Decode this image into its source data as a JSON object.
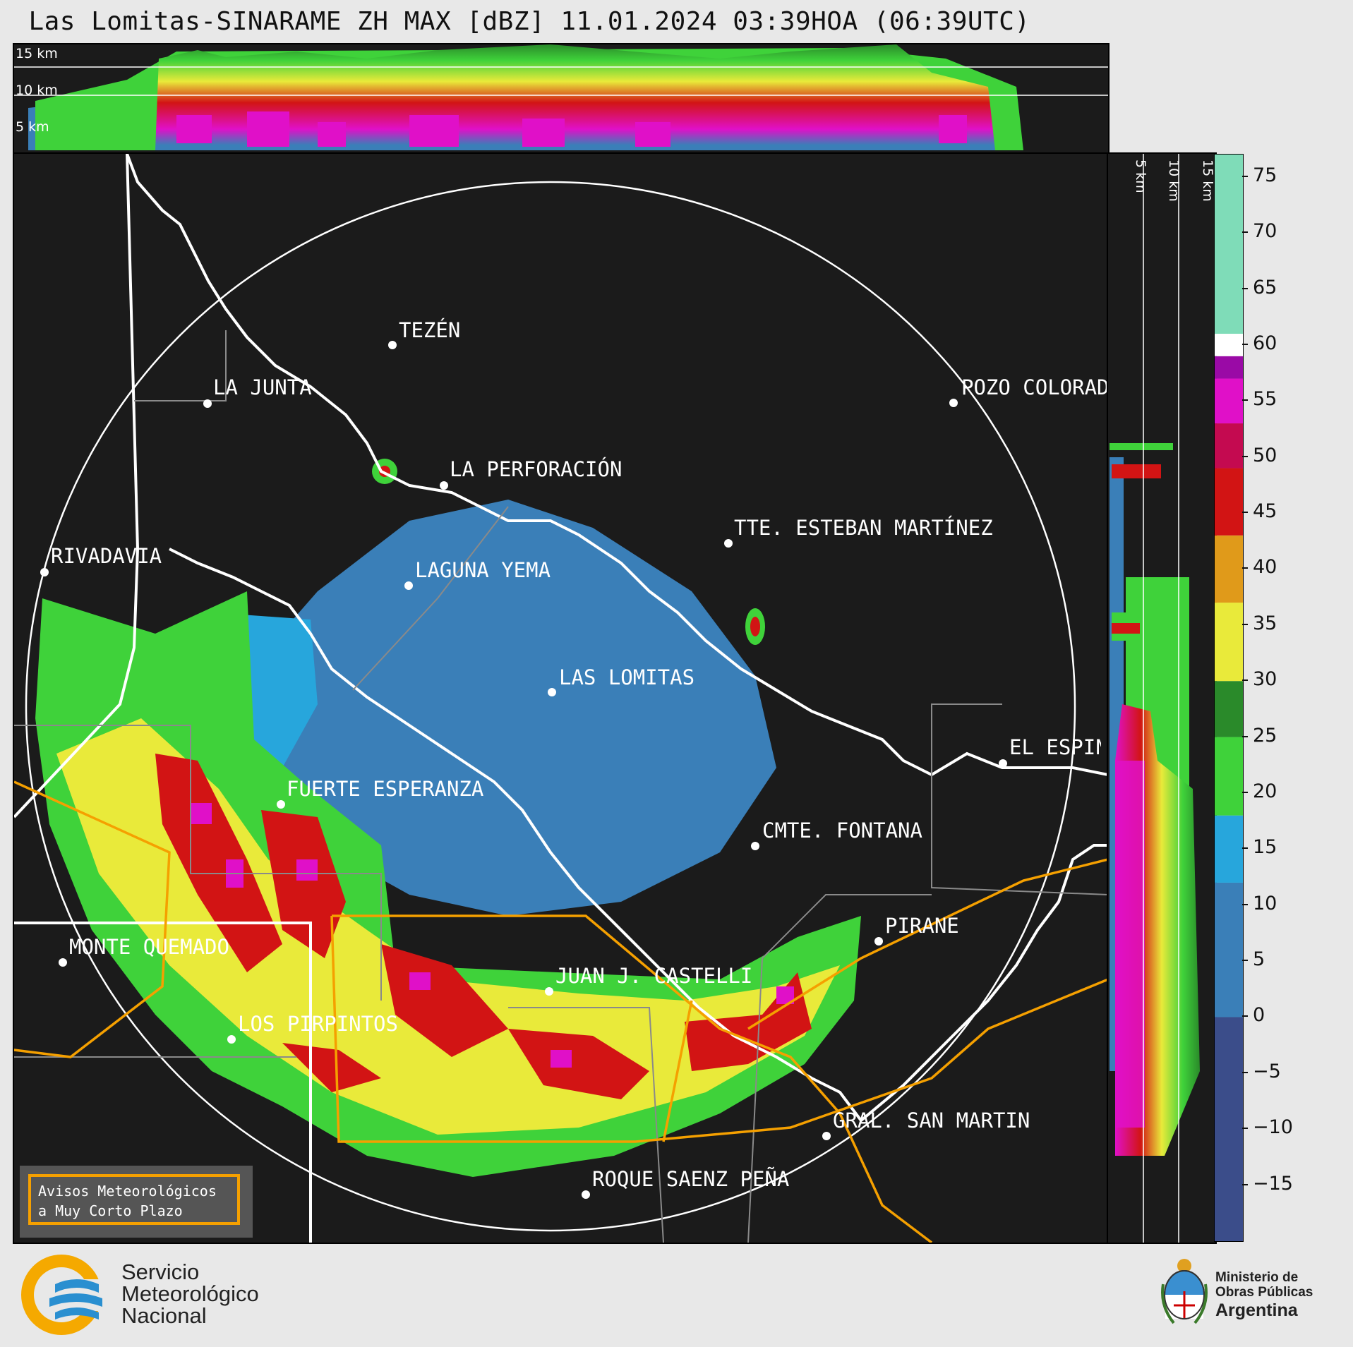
{
  "title": "Las Lomitas-SINARAME ZH MAX [dBZ] 11.01.2024 03:39HOA (06:39UTC)",
  "top_profile": {
    "labels": [
      "15 km",
      "10 km",
      "5 km"
    ]
  },
  "side_profile": {
    "labels": [
      "5 km",
      "10 km",
      "15 km"
    ]
  },
  "colorbar": {
    "ticks": [
      "75",
      "70",
      "65",
      "60",
      "55",
      "50",
      "45",
      "40",
      "35",
      "30",
      "25",
      "20",
      "15",
      "10",
      "5",
      "0",
      "−5",
      "−10",
      "−15"
    ],
    "stops": [
      {
        "min": -20,
        "max": 0,
        "color": "#3b4d8a"
      },
      {
        "min": 0,
        "max": 12,
        "color": "#3a7fb8"
      },
      {
        "min": 12,
        "max": 18,
        "color": "#27a6dc"
      },
      {
        "min": 18,
        "max": 25,
        "color": "#3fd23a"
      },
      {
        "min": 25,
        "max": 30,
        "color": "#2a8a2a"
      },
      {
        "min": 30,
        "max": 37,
        "color": "#e9ea3a"
      },
      {
        "min": 37,
        "max": 43,
        "color": "#e09a1a"
      },
      {
        "min": 43,
        "max": 49,
        "color": "#d21414"
      },
      {
        "min": 49,
        "max": 53,
        "color": "#c40a50"
      },
      {
        "min": 53,
        "max": 57,
        "color": "#e010c8"
      },
      {
        "min": 57,
        "max": 59,
        "color": "#9a0aa6"
      },
      {
        "min": 59,
        "max": 61,
        "color": "#ffffff"
      },
      {
        "min": 61,
        "max": 77,
        "color": "#7fdcb8"
      }
    ]
  },
  "radar": {
    "name": "LAS LOMITAS"
  },
  "cities": [
    {
      "name": "TEZÉN"
    },
    {
      "name": "LA JUNTA"
    },
    {
      "name": "POZO COLORADO"
    },
    {
      "name": "LA PERFORACIÓN"
    },
    {
      "name": "TTE. ESTEBAN MARTÍNEZ"
    },
    {
      "name": "RIVADAVIA"
    },
    {
      "name": "LAGUNA YEMA"
    },
    {
      "name": "LAS LOMITAS"
    },
    {
      "name": "EL ESPINILLO"
    },
    {
      "name": "FUERTE ESPERANZA"
    },
    {
      "name": "CMTE. FONTANA"
    },
    {
      "name": "PIRANE"
    },
    {
      "name": "MONTE QUEMADO"
    },
    {
      "name": "JUAN J. CASTELLI"
    },
    {
      "name": "LOS PIRPINTOS"
    },
    {
      "name": "GRAL. SAN MARTIN"
    },
    {
      "name": "ROQUE SAENZ PEÑA"
    }
  ],
  "avisos": {
    "line1": "Avisos Meteorológicos",
    "line2": "a Muy Corto Plazo"
  },
  "smn": {
    "line1": "Servicio",
    "line2": "Meteorológico",
    "line3": "Nacional"
  },
  "ministerio": {
    "line1": "Ministerio de",
    "line2": "Obras Públicas",
    "line3": "Argentina"
  },
  "colors": {
    "background": "#e8e8e8",
    "panel": "#1b1b1b",
    "province": "#f5a000",
    "border": "#ffffff"
  }
}
